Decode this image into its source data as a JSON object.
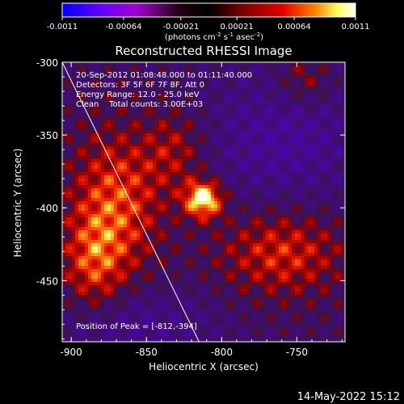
{
  "chart_data": {
    "type": "heatmap",
    "title": "Reconstructed RHESSI Image",
    "xlabel": "Heliocentric X (arcsec)",
    "ylabel": "Heliocentric Y (arcsec)",
    "xlim": [
      -906,
      -718
    ],
    "ylim": [
      -492,
      -300
    ],
    "x_ticks": [
      "-900",
      "-850",
      "-800",
      "-750"
    ],
    "x_tick_values": [
      -900,
      -850,
      -800,
      -750
    ],
    "y_ticks": [
      "-300",
      "-350",
      "-400",
      "-450"
    ],
    "y_tick_values": [
      -300,
      -350,
      -400,
      -450
    ],
    "colorbar": {
      "ticks": [
        "-0.0011",
        "-0.00064",
        "-0.00021",
        "0.00021",
        "0.00064",
        "0.0011"
      ],
      "tick_values": [
        -0.0011,
        -0.00064,
        -0.00021,
        0.00021,
        0.00064,
        0.0011
      ],
      "range": [
        -0.0011,
        0.0011
      ],
      "label_main": "(photons cm",
      "label_exp1": "-2",
      "label_mid1": " s",
      "label_exp2": "-1",
      "label_mid2": " asec",
      "label_exp3": "-2",
      "label_end": ")",
      "colors": [
        "#0000ff",
        "#5a00ff",
        "#a000d0",
        "#000000",
        "#800000",
        "#e00000",
        "#ff8000",
        "#ffff60",
        "#ffffff"
      ]
    },
    "peak": {
      "x": -812,
      "y": -394
    },
    "limb_line": {
      "x1": -906,
      "y1": -300,
      "x2": -815,
      "y2": -492
    },
    "annotations": [
      "20-Sep-2012 01:08:48.000 to 01:11:40.000",
      "Detectors: 3F 5F 6F 7F 8F, Att 0",
      "Energy Range: 12.0 - 25.0 keV",
      "Clean    Total counts: 3.00E+03",
      "Position of Peak = [-812,-394]"
    ],
    "grid": false,
    "timestamp": "14-May-2022 15:12"
  }
}
